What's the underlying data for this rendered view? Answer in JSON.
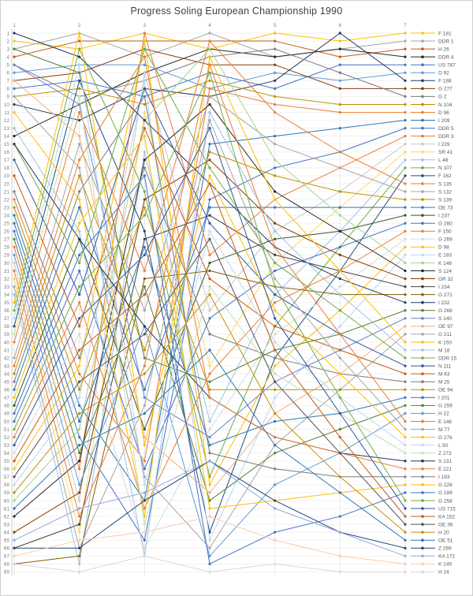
{
  "title": "Progress Soling European Championship 1990",
  "axes": {
    "top_ticks": [
      "1",
      "2",
      "3",
      "4",
      "5",
      "6",
      "7"
    ],
    "left_ticks": [
      "1",
      "2",
      "3",
      "4",
      "5",
      "6",
      "7",
      "8",
      "9",
      "10",
      "11",
      "12",
      "13",
      "14",
      "15",
      "16",
      "17",
      "18",
      "19",
      "20",
      "21",
      "22",
      "23",
      "24",
      "25",
      "26",
      "27",
      "28",
      "29",
      "30",
      "31",
      "32",
      "33",
      "34",
      "35",
      "36",
      "37",
      "38",
      "39",
      "40",
      "41",
      "42",
      "43",
      "44",
      "45",
      "46",
      "47",
      "48",
      "49",
      "50",
      "51",
      "52",
      "53",
      "54",
      "55",
      "56",
      "57",
      "58",
      "59",
      "60",
      "61",
      "62",
      "63",
      "64",
      "65",
      "66",
      "67",
      "68",
      "69"
    ]
  },
  "colors": {
    "grid_h": "#ededed",
    "grid_v": "#e0e0e0",
    "axis_line": "#c0c0c0",
    "tick_text": "#808080",
    "legend_text": "#595959",
    "title_text": "#404040"
  },
  "chart_data": {
    "type": "line",
    "subtype": "bump-chart",
    "title": "Progress Soling European Championship 1990",
    "x": [
      1,
      2,
      3,
      4,
      5,
      6,
      7
    ],
    "xlabel": "",
    "ylabel": "",
    "ylim": [
      1,
      69
    ],
    "y_inverted": true,
    "grid": true,
    "legend_position": "right",
    "series": [
      {
        "name": "F 181",
        "color": "#FFC000",
        "positions": [
          2,
          3,
          1,
          3,
          1,
          2,
          1
        ]
      },
      {
        "name": "DDR 1",
        "color": "#A5A5A5",
        "positions": [
          3,
          1,
          4,
          1,
          4,
          3,
          2
        ]
      },
      {
        "name": "H 26",
        "color": "#C55A11",
        "positions": [
          4,
          2,
          2,
          2,
          2,
          4,
          3
        ]
      },
      {
        "name": "DDR 4",
        "color": "#262626",
        "positions": [
          14,
          10,
          6,
          3,
          4,
          3,
          4
        ]
      },
      {
        "name": "US 787",
        "color": "#4472C4",
        "positions": [
          8,
          7,
          9,
          6,
          8,
          5,
          5
        ]
      },
      {
        "name": "D 92",
        "color": "#5B9BD5",
        "positions": [
          6,
          5,
          5,
          8,
          6,
          7,
          6
        ]
      },
      {
        "name": "F 188",
        "color": "#1F3864",
        "positions": [
          10,
          12,
          8,
          9,
          7,
          1,
          7
        ]
      },
      {
        "name": "G 277",
        "color": "#843C0C",
        "positions": [
          7,
          6,
          3,
          5,
          5,
          8,
          8
        ]
      },
      {
        "name": "G 2",
        "color": "#7B7B7B",
        "positions": [
          5,
          9,
          7,
          4,
          3,
          6,
          9
        ]
      },
      {
        "name": "N 104",
        "color": "#BF9000",
        "positions": [
          9,
          8,
          10,
          7,
          9,
          10,
          10
        ]
      },
      {
        "name": "D 96",
        "color": "#ED7D31",
        "positions": [
          22,
          44,
          55,
          8,
          10,
          11,
          11
        ]
      },
      {
        "name": "I 209",
        "color": "#2E75B6",
        "positions": [
          24,
          48,
          60,
          15,
          14,
          13,
          12
        ]
      },
      {
        "name": "DDR 5",
        "color": "#4472C4",
        "positions": [
          26,
          52,
          65,
          22,
          18,
          16,
          13
        ]
      },
      {
        "name": "DDR 3",
        "color": "#ED7D31",
        "positions": [
          28,
          56,
          1,
          29,
          22,
          18,
          14
        ]
      },
      {
        "name": "I 229",
        "color": "#C9C9C9",
        "positions": [
          30,
          60,
          6,
          36,
          26,
          21,
          15
        ]
      },
      {
        "name": "SR 41",
        "color": "#FFD966",
        "positions": [
          32,
          64,
          11,
          43,
          30,
          23,
          16
        ]
      },
      {
        "name": "L 48",
        "color": "#9DC3E6",
        "positions": [
          34,
          68,
          16,
          50,
          34,
          26,
          17
        ]
      },
      {
        "name": "N 107",
        "color": "#70AD47",
        "positions": [
          36,
          3,
          21,
          57,
          38,
          28,
          18
        ]
      },
      {
        "name": "F 162",
        "color": "#1F4E79",
        "positions": [
          38,
          7,
          26,
          64,
          42,
          31,
          19
        ]
      },
      {
        "name": "S 135",
        "color": "#ED7D31",
        "positions": [
          40,
          11,
          31,
          2,
          11,
          16,
          20
        ]
      },
      {
        "name": "S 132",
        "color": "#A5A5A5",
        "positions": [
          42,
          15,
          36,
          9,
          15,
          18,
          21
        ]
      },
      {
        "name": "S 139",
        "color": "#BF9000",
        "positions": [
          44,
          19,
          41,
          16,
          19,
          21,
          22
        ]
      },
      {
        "name": "OE 73",
        "color": "#2E75B6",
        "positions": [
          46,
          23,
          46,
          23,
          23,
          23,
          23
        ]
      },
      {
        "name": "I 237",
        "color": "#375623",
        "positions": [
          48,
          27,
          51,
          30,
          27,
          26,
          24
        ]
      },
      {
        "name": "G 280",
        "color": "#4472C4",
        "positions": [
          50,
          31,
          56,
          37,
          31,
          28,
          25
        ]
      },
      {
        "name": "F 150",
        "color": "#ED7D31",
        "positions": [
          52,
          35,
          61,
          44,
          35,
          31,
          26
        ]
      },
      {
        "name": "G 269",
        "color": "#D9D9D9",
        "positions": [
          54,
          39,
          66,
          51,
          39,
          33,
          27
        ]
      },
      {
        "name": "D 98",
        "color": "#FFC000",
        "positions": [
          56,
          43,
          2,
          58,
          43,
          36,
          28
        ]
      },
      {
        "name": "E 183",
        "color": "#BDD7EE",
        "positions": [
          58,
          47,
          7,
          65,
          47,
          38,
          29
        ]
      },
      {
        "name": "K 148",
        "color": "#A9D18E",
        "positions": [
          60,
          51,
          12,
          3,
          17,
          24,
          30
        ]
      },
      {
        "name": "S 124",
        "color": "#262626",
        "positions": [
          62,
          55,
          17,
          10,
          21,
          26,
          31
        ]
      },
      {
        "name": "GR 32",
        "color": "#833C00",
        "positions": [
          64,
          59,
          22,
          17,
          25,
          29,
          32
        ]
      },
      {
        "name": "I 234",
        "color": "#404040",
        "positions": [
          66,
          63,
          27,
          24,
          29,
          31,
          33
        ]
      },
      {
        "name": "G 271",
        "color": "#7F6000",
        "positions": [
          68,
          67,
          32,
          31,
          33,
          34,
          34
        ]
      },
      {
        "name": "I 232",
        "color": "#1F3864",
        "positions": [
          1,
          4,
          12,
          20,
          28,
          32,
          35
        ]
      },
      {
        "name": "G 266",
        "color": "#548235",
        "positions": [
          3,
          6,
          42,
          45,
          41,
          39,
          36
        ]
      },
      {
        "name": "S 140",
        "color": "#7080C8",
        "positions": [
          5,
          10,
          47,
          52,
          45,
          41,
          37
        ]
      },
      {
        "name": "OE 97",
        "color": "#F4B183",
        "positions": [
          7,
          14,
          52,
          59,
          49,
          44,
          38
        ]
      },
      {
        "name": "G 211",
        "color": "#A5A5A5",
        "positions": [
          9,
          18,
          57,
          66,
          53,
          46,
          39
        ]
      },
      {
        "name": "K 150",
        "color": "#FFC000",
        "positions": [
          11,
          22,
          62,
          4,
          22,
          31,
          40
        ]
      },
      {
        "name": "M 18",
        "color": "#9DC3E6",
        "positions": [
          13,
          26,
          67,
          11,
          26,
          34,
          41
        ]
      },
      {
        "name": "DDR 15",
        "color": "#70AD47",
        "positions": [
          15,
          30,
          3,
          18,
          30,
          36,
          42
        ]
      },
      {
        "name": "N 111",
        "color": "#2F5597",
        "positions": [
          17,
          34,
          8,
          25,
          34,
          39,
          43
        ]
      },
      {
        "name": "M 63",
        "color": "#C55A11",
        "positions": [
          19,
          38,
          13,
          32,
          38,
          41,
          44
        ]
      },
      {
        "name": "M 25",
        "color": "#7B7B7B",
        "positions": [
          21,
          42,
          18,
          39,
          42,
          44,
          45
        ]
      },
      {
        "name": "OE 94",
        "color": "#BF9000",
        "positions": [
          23,
          46,
          23,
          46,
          46,
          46,
          46
        ]
      },
      {
        "name": "I 201",
        "color": "#2E75B6",
        "positions": [
          25,
          50,
          28,
          53,
          50,
          49,
          47
        ]
      },
      {
        "name": "G 259",
        "color": "#548235",
        "positions": [
          27,
          54,
          33,
          60,
          54,
          51,
          48
        ]
      },
      {
        "name": "H 22",
        "color": "#5B9BD5",
        "positions": [
          29,
          58,
          38,
          67,
          58,
          54,
          49
        ]
      },
      {
        "name": "E 146",
        "color": "#ED7D31",
        "positions": [
          31,
          62,
          43,
          5,
          28,
          39,
          50
        ]
      },
      {
        "name": "M 77",
        "color": "#A5A5A5",
        "positions": [
          33,
          66,
          48,
          12,
          32,
          42,
          51
        ]
      },
      {
        "name": "G 276",
        "color": "#FFC000",
        "positions": [
          35,
          1,
          53,
          19,
          36,
          44,
          52
        ]
      },
      {
        "name": "L 50",
        "color": "#BDD7EE",
        "positions": [
          37,
          5,
          58,
          26,
          40,
          47,
          53
        ]
      },
      {
        "name": "Z 273",
        "color": "#C6E0B4",
        "positions": [
          39,
          9,
          63,
          33,
          44,
          49,
          54
        ]
      },
      {
        "name": "S 131",
        "color": "#1F3864",
        "positions": [
          15,
          27,
          38,
          47,
          52,
          54,
          55
        ]
      },
      {
        "name": "E 221",
        "color": "#ED7D31",
        "positions": [
          43,
          17,
          4,
          47,
          52,
          54,
          56
        ]
      },
      {
        "name": "I 193",
        "color": "#7B7B7B",
        "positions": [
          45,
          21,
          9,
          54,
          56,
          57,
          57
        ]
      },
      {
        "name": "G 228",
        "color": "#FFC000",
        "positions": [
          47,
          25,
          14,
          61,
          60,
          59,
          58
        ]
      },
      {
        "name": "G 189",
        "color": "#4472C4",
        "positions": [
          49,
          29,
          19,
          68,
          64,
          62,
          59
        ]
      },
      {
        "name": "G 258",
        "color": "#70AD47",
        "positions": [
          51,
          33,
          24,
          6,
          33,
          47,
          60
        ]
      },
      {
        "name": "US 715",
        "color": "#2F5597",
        "positions": [
          53,
          37,
          29,
          13,
          37,
          49,
          61
        ]
      },
      {
        "name": "KA 152",
        "color": "#C55A11",
        "positions": [
          55,
          41,
          34,
          20,
          41,
          52,
          62
        ]
      },
      {
        "name": "OE 36",
        "color": "#525252",
        "positions": [
          57,
          45,
          39,
          27,
          45,
          54,
          63
        ]
      },
      {
        "name": "H 20",
        "color": "#BF9000",
        "positions": [
          59,
          49,
          44,
          34,
          49,
          57,
          64
        ]
      },
      {
        "name": "OE 51",
        "color": "#2E75B6",
        "positions": [
          61,
          53,
          49,
          41,
          53,
          59,
          65
        ]
      },
      {
        "name": "Z 269",
        "color": "#264478",
        "positions": [
          66,
          66,
          60,
          55,
          60,
          64,
          66
        ]
      },
      {
        "name": "KA 172",
        "color": "#8FAADC",
        "positions": [
          65,
          61,
          59,
          55,
          61,
          64,
          67
        ]
      },
      {
        "name": "K 149",
        "color": "#F8CBAD",
        "positions": [
          67,
          65,
          64,
          62,
          65,
          67,
          68
        ]
      },
      {
        "name": "H 24",
        "color": "#D9D9D9",
        "positions": [
          68,
          69,
          67,
          69,
          68,
          69,
          69
        ]
      }
    ]
  }
}
